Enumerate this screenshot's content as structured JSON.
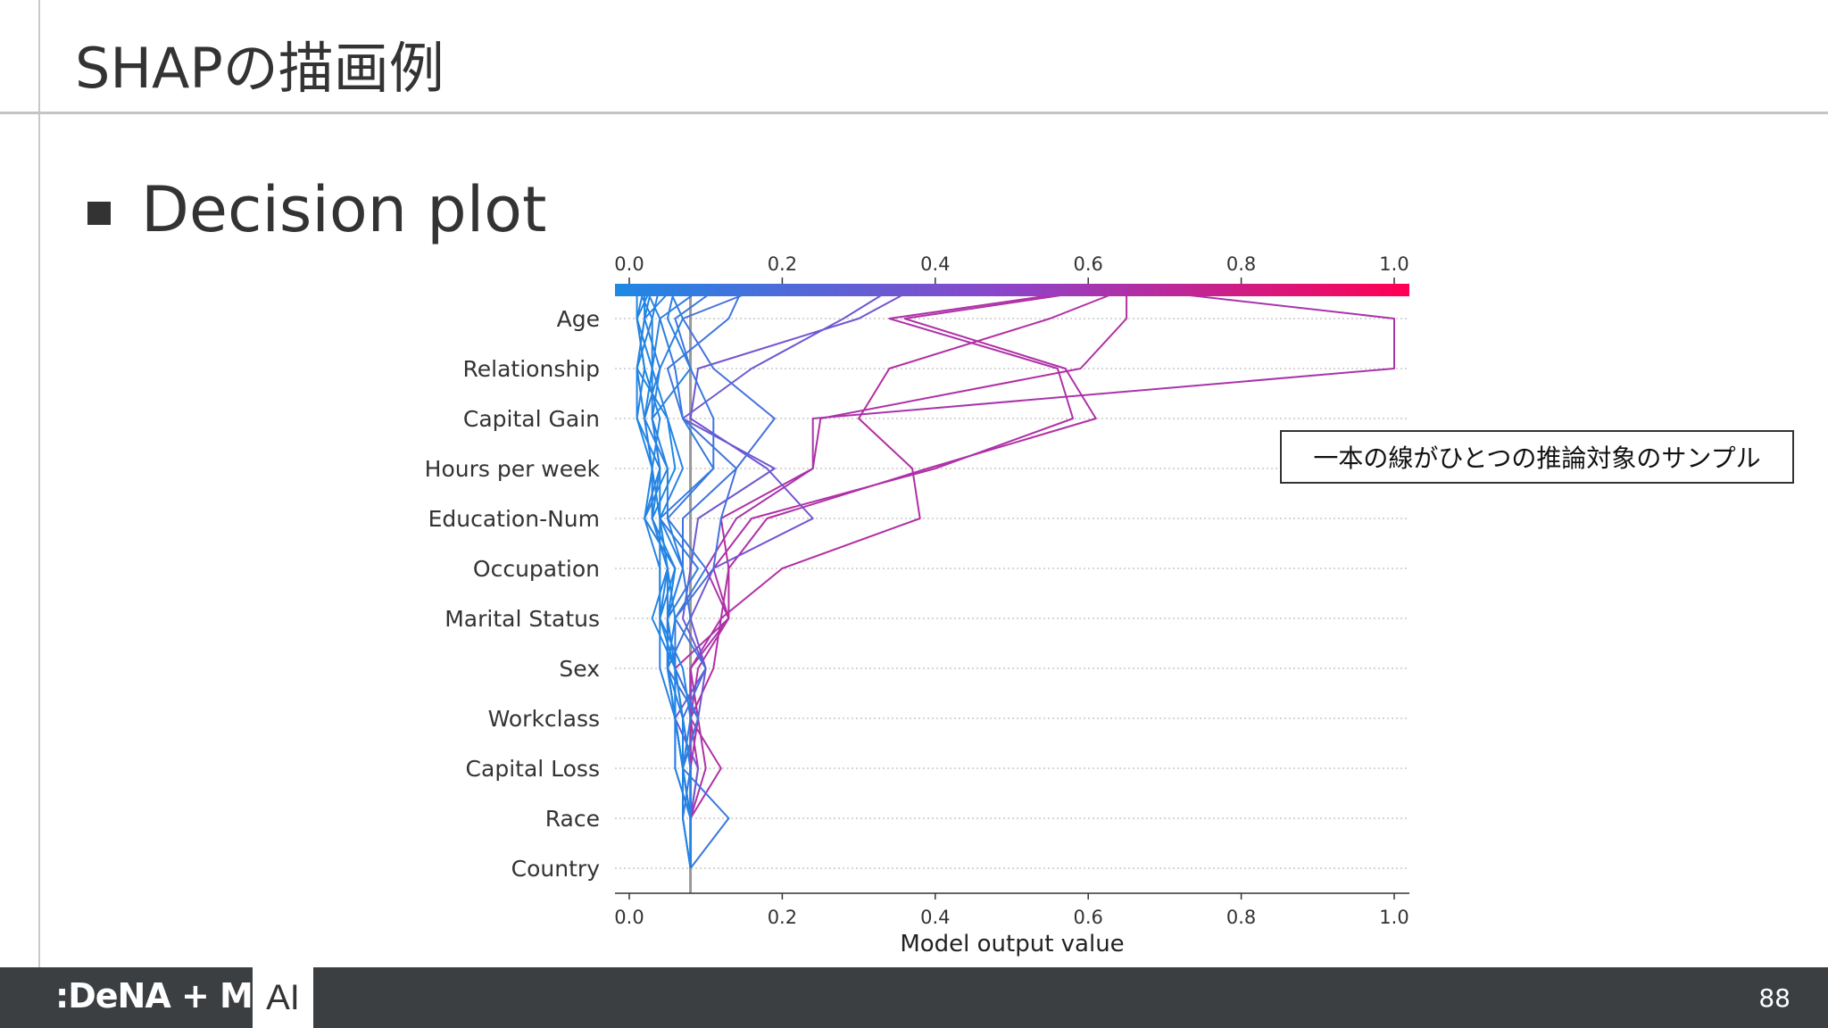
{
  "slide": {
    "title": "SHAPの描画例",
    "bullet": "Decision plot",
    "callout": "一本の線がひとつの推論対象のサンプル",
    "page_number": "88"
  },
  "footer": {
    "logo_text": ":DeNA + MoT",
    "ai_label": "AI"
  },
  "colors": {
    "low": "#1e88e5",
    "mid": "#8e44c8",
    "high": "#ff0052",
    "base_line": "#999999"
  },
  "chart_data": {
    "type": "line",
    "title": "",
    "xlabel": "Model output value",
    "ylabel": "",
    "xlim": [
      0.0,
      1.0
    ],
    "x_ticks": [
      "0.0",
      "0.2",
      "0.4",
      "0.6",
      "0.8",
      "1.0"
    ],
    "features": [
      "Age",
      "Relationship",
      "Capital Gain",
      "Hours per week",
      "Education-Num",
      "Occupation",
      "Marital Status",
      "Sex",
      "Workclass",
      "Capital Loss",
      "Race",
      "Country"
    ],
    "base_value": 0.08,
    "grid": true,
    "colorbar": "top",
    "series": [
      {
        "values": [
          0.08,
          0.08,
          0.12,
          0.08,
          0.09,
          0.13,
          0.13,
          0.12,
          0.24,
          0.25,
          0.59,
          0.65,
          0.65
        ]
      },
      {
        "values": [
          0.08,
          0.08,
          0.09,
          0.08,
          0.08,
          0.13,
          0.1,
          0.14,
          0.24,
          0.24,
          1.0,
          1.0,
          0.62
        ]
      },
      {
        "values": [
          0.08,
          0.08,
          0.08,
          0.08,
          0.11,
          0.12,
          0.2,
          0.38,
          0.37,
          0.3,
          0.34,
          0.55,
          0.66
        ]
      },
      {
        "values": [
          0.08,
          0.08,
          0.08,
          0.09,
          0.08,
          0.12,
          0.13,
          0.18,
          0.39,
          0.61,
          0.57,
          0.36,
          0.65
        ]
      },
      {
        "values": [
          0.08,
          0.08,
          0.1,
          0.09,
          0.06,
          0.13,
          0.11,
          0.16,
          0.4,
          0.58,
          0.56,
          0.34,
          0.64
        ]
      },
      {
        "values": [
          0.08,
          0.08,
          0.07,
          0.09,
          0.1,
          0.08,
          0.11,
          0.24,
          0.18,
          0.08,
          0.09,
          0.3,
          0.38
        ]
      },
      {
        "values": [
          0.08,
          0.08,
          0.09,
          0.06,
          0.1,
          0.07,
          0.08,
          0.09,
          0.19,
          0.07,
          0.16,
          0.28,
          0.35
        ]
      },
      {
        "values": [
          0.08,
          0.08,
          0.08,
          0.07,
          0.1,
          0.06,
          0.11,
          0.12,
          0.14,
          0.19,
          0.11,
          0.07,
          0.18
        ]
      },
      {
        "values": [
          0.08,
          0.08,
          0.07,
          0.09,
          0.05,
          0.08,
          0.07,
          0.07,
          0.14,
          0.07,
          0.05,
          0.13,
          0.15
        ]
      },
      {
        "values": [
          0.08,
          0.13,
          0.07,
          0.09,
          0.06,
          0.06,
          0.1,
          0.05,
          0.11,
          0.11,
          0.08,
          0.06,
          0.12
        ]
      },
      {
        "values": [
          0.08,
          0.07,
          0.08,
          0.07,
          0.06,
          0.05,
          0.09,
          0.04,
          0.11,
          0.07,
          0.06,
          0.04,
          0.1
        ]
      },
      {
        "values": [
          0.08,
          0.08,
          0.07,
          0.06,
          0.06,
          0.05,
          0.07,
          0.05,
          0.05,
          0.03,
          0.08,
          0.05,
          0.06
        ]
      },
      {
        "values": [
          0.08,
          0.08,
          0.08,
          0.07,
          0.05,
          0.05,
          0.07,
          0.04,
          0.04,
          0.03,
          0.03,
          0.03,
          0.04
        ]
      },
      {
        "values": [
          0.08,
          0.07,
          0.07,
          0.06,
          0.06,
          0.04,
          0.06,
          0.03,
          0.03,
          0.02,
          0.03,
          0.04,
          0.02
        ]
      },
      {
        "values": [
          0.08,
          0.08,
          0.07,
          0.06,
          0.05,
          0.06,
          0.05,
          0.03,
          0.06,
          0.05,
          0.01,
          0.03,
          0.01
        ]
      },
      {
        "values": [
          0.08,
          0.08,
          0.06,
          0.06,
          0.06,
          0.04,
          0.05,
          0.04,
          0.03,
          0.04,
          0.02,
          0.01,
          0.01
        ]
      },
      {
        "values": [
          0.08,
          0.07,
          0.07,
          0.06,
          0.05,
          0.05,
          0.06,
          0.02,
          0.05,
          0.02,
          0.01,
          0.02,
          0.03
        ]
      },
      {
        "values": [
          0.08,
          0.08,
          0.07,
          0.06,
          0.04,
          0.04,
          0.04,
          0.02,
          0.04,
          0.03,
          0.04,
          0.07,
          0.05
        ]
      },
      {
        "values": [
          0.08,
          0.08,
          0.07,
          0.07,
          0.06,
          0.03,
          0.05,
          0.03,
          0.04,
          0.01,
          0.02,
          0.01,
          0.02
        ]
      },
      {
        "values": [
          0.08,
          0.08,
          0.06,
          0.06,
          0.05,
          0.05,
          0.05,
          0.03,
          0.03,
          0.02,
          0.04,
          0.02,
          0.06
        ]
      },
      {
        "values": [
          0.08,
          0.08,
          0.07,
          0.06,
          0.05,
          0.05,
          0.06,
          0.02,
          0.03,
          0.01,
          0.01,
          0.02,
          0.02
        ]
      },
      {
        "values": [
          0.08,
          0.08,
          0.07,
          0.08,
          0.07,
          0.04,
          0.04,
          0.04,
          0.07,
          0.05,
          0.03,
          0.01,
          0.03
        ]
      }
    ]
  }
}
